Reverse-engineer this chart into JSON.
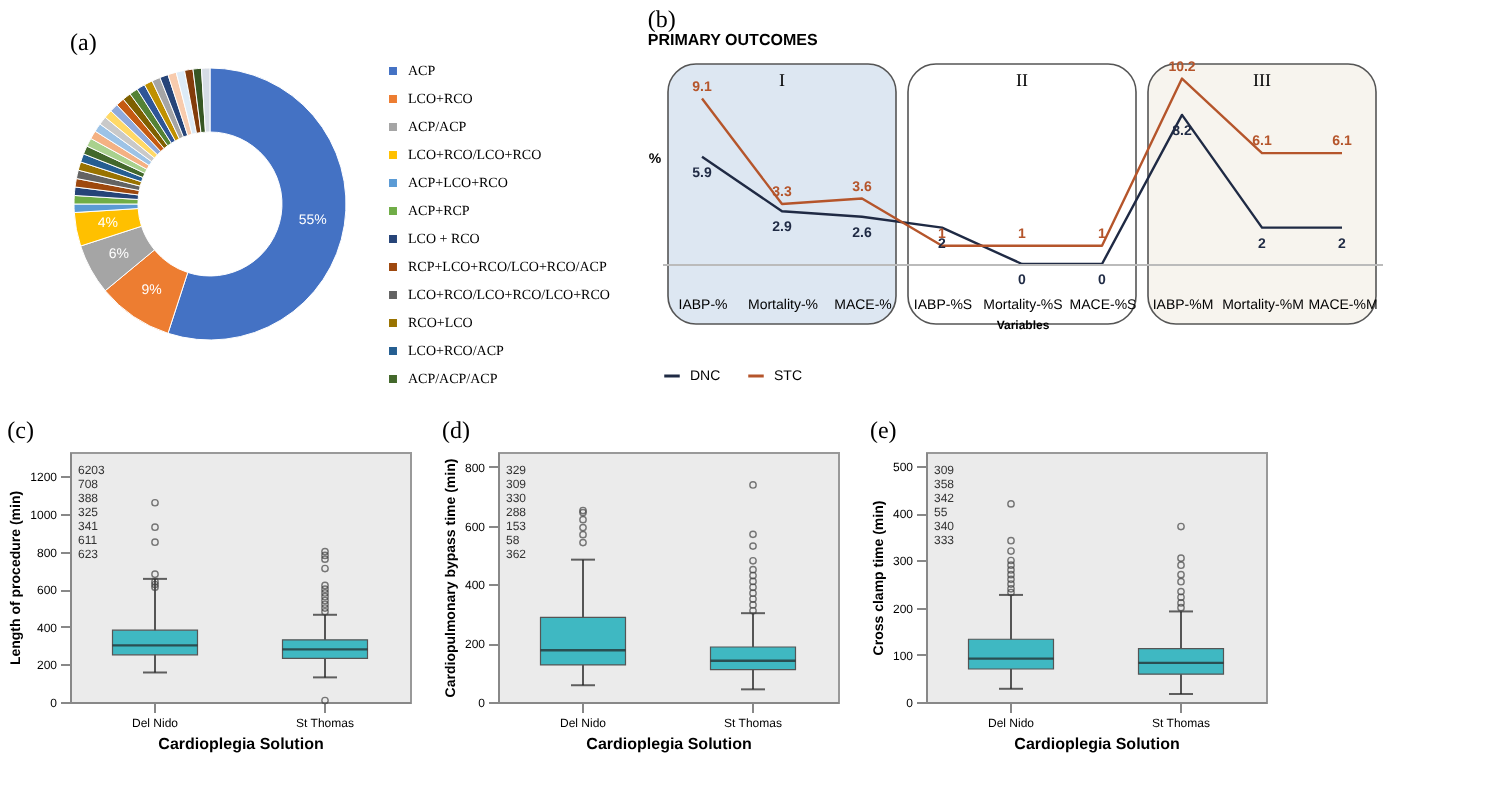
{
  "chart_data": [
    {
      "type": "donut",
      "title": "(a)",
      "legend": "right",
      "categories": [
        "ACP",
        "LCO+RCO",
        "ACP/ACP",
        "LCO+RCO/LCO+RCO",
        "ACP+LCO+RCO",
        "ACP+RCP",
        "LCO + RCO",
        "RCP+LCO+RCO/LCO+RCO/ACP",
        "LCO+RCO/LCO+RCO/LCO+RCO",
        "RCO+LCO",
        "LCO+RCO/ACP",
        "ACP/ACP/ACP",
        null,
        null,
        null,
        null,
        null,
        null,
        null,
        null,
        null,
        null,
        null,
        null,
        null,
        null,
        null,
        null,
        null,
        null
      ],
      "values": [
        55,
        9,
        6,
        4,
        1,
        1,
        1,
        1,
        1,
        1,
        1,
        1,
        1,
        1,
        1,
        1,
        1,
        1,
        1,
        1,
        1,
        1,
        1,
        1,
        1,
        1,
        1,
        1,
        1,
        1
      ],
      "value_labels": [
        "55%",
        "9%",
        "6%",
        "4%",
        null,
        null,
        null,
        null,
        null,
        null,
        null,
        null,
        null,
        null,
        null,
        null,
        null,
        null,
        null,
        null,
        null,
        null,
        null,
        null,
        null,
        null,
        null,
        null,
        null,
        null
      ],
      "colors": [
        "#4472c4",
        "#ed7d31",
        "#a5a5a5",
        "#ffc000",
        "#5b9bd5",
        "#70ad47",
        "#264478",
        "#9e480e",
        "#636363",
        "#997300",
        "#255e91",
        "#43682b",
        "#a9d18e",
        "#f4b183",
        "#9dc3e6",
        "#c9c9c9",
        "#ffd966",
        "#8faadc",
        "#c55a11",
        "#7f6000",
        "#548235",
        "#2f5597",
        "#bf9000",
        "#a5a5a5",
        "#264478",
        "#f8cbad",
        "#ddebf7",
        "#833c0b",
        "#375623",
        "#d6dce5"
      ]
    },
    {
      "type": "line",
      "title": "(b)",
      "subtitle": "PRIMARY OUTCOMES",
      "xlabel": "Variables",
      "ylabel": "%",
      "legend": "bottom",
      "data_labels": true,
      "tick_labels": "x",
      "categories": [
        "IABP-%",
        "Mortality-%",
        "MACE-%",
        "IABP-%S",
        "Mortality-%S",
        "MACE-%S",
        "IABP-%M",
        "Mortality-%M",
        "MACE-%M"
      ],
      "series": [
        {
          "name": "DNC",
          "color": "#1f2a44",
          "values": [
            5.9,
            2.9,
            2.6,
            2,
            0,
            0,
            8.2,
            2,
            2
          ]
        },
        {
          "name": "STC",
          "color": "#b5552b",
          "values": [
            9.1,
            3.3,
            3.6,
            1,
            1,
            1,
            10.2,
            6.1,
            6.1
          ]
        }
      ],
      "bands": [
        {
          "axis": "x",
          "from": "IABP-%",
          "to": "MACE-%",
          "label": "I",
          "color": "#dde7f2"
        },
        {
          "axis": "x",
          "from": "IABP-%S",
          "to": "MACE-%S",
          "label": "II",
          "color": "#ffffff"
        },
        {
          "axis": "x",
          "from": "IABP-%M",
          "to": "MACE-%M",
          "label": "III",
          "color": "#f7f4ee"
        }
      ]
    },
    {
      "type": "box",
      "title": "(c)",
      "xlabel": "Cardioplegia Solution",
      "ylabel": "Length of procedure (min)",
      "ylim": [
        0,
        1330
      ],
      "yticks": [
        0,
        200,
        400,
        600,
        800,
        1000,
        1200
      ],
      "categories": [
        "Del Nido",
        "St Thomas"
      ],
      "series": [
        {
          "color": "#3fb8c2",
          "boxes": [
            {
              "low": 157,
              "q1": 251,
              "median": 301,
              "q3": 382,
              "high": 655,
              "outliers": [
                610,
                625,
                640,
                680,
                850,
                930,
                1060
              ]
            },
            {
              "low": 131,
              "q1": 232,
              "median": 280,
              "q3": 331,
              "high": 464,
              "outliers": [
                8,
                480,
                500,
                520,
                540,
                560,
                580,
                600,
                620,
                710,
                760,
                780,
                800
              ]
            }
          ]
        }
      ],
      "annotations": [
        "6203",
        "708",
        "388",
        "325",
        "341",
        "611",
        "623"
      ]
    },
    {
      "type": "box",
      "title": "(d)",
      "xlabel": "Cardioplegia Solution",
      "ylabel": "Cardiopulmonary bypass time (min)",
      "ylim": [
        0,
        850
      ],
      "yticks": [
        0,
        200,
        400,
        600,
        800
      ],
      "categories": [
        "Del Nido",
        "St Thomas"
      ],
      "series": [
        {
          "color": "#3fb8c2",
          "boxes": [
            {
              "low": 57,
              "q1": 126,
              "median": 176,
              "q3": 288,
              "high": 484,
              "outliers": [
                542,
                569,
                593,
                620,
                644,
                651
              ]
            },
            {
              "low": 43,
              "q1": 110,
              "median": 140,
              "q3": 187,
              "high": 302,
              "outliers": [
                310,
                330,
                350,
                370,
                390,
                410,
                430,
                450,
                480,
                530,
                570,
                738
              ]
            }
          ]
        }
      ],
      "annotations": [
        "329",
        "309",
        "330",
        "288",
        "153",
        "58",
        "362"
      ]
    },
    {
      "type": "box",
      "title": "(e)",
      "xlabel": "Cardioplegia Solution",
      "ylabel": "Cross clamp time (min)",
      "ylim": [
        0,
        530
      ],
      "yticks": [
        0,
        100,
        200,
        300,
        400,
        500
      ],
      "categories": [
        "Del Nido",
        "St Thomas"
      ],
      "series": [
        {
          "color": "#3fb8c2",
          "boxes": [
            {
              "low": 28,
              "q1": 70,
              "median": 92,
              "q3": 133,
              "high": 227,
              "outliers": [
                232,
                240,
                250,
                260,
                270,
                280,
                290,
                300,
                320,
                342,
                420
              ]
            },
            {
              "low": 17,
              "q1": 59,
              "median": 83,
              "q3": 113,
              "high": 192,
              "outliers": [
                200,
                210,
                222,
                234,
                255,
                270,
                290,
                305,
                372
              ]
            }
          ]
        }
      ],
      "annotations": [
        "309",
        "358",
        "342",
        "55",
        "340",
        "333"
      ]
    }
  ]
}
